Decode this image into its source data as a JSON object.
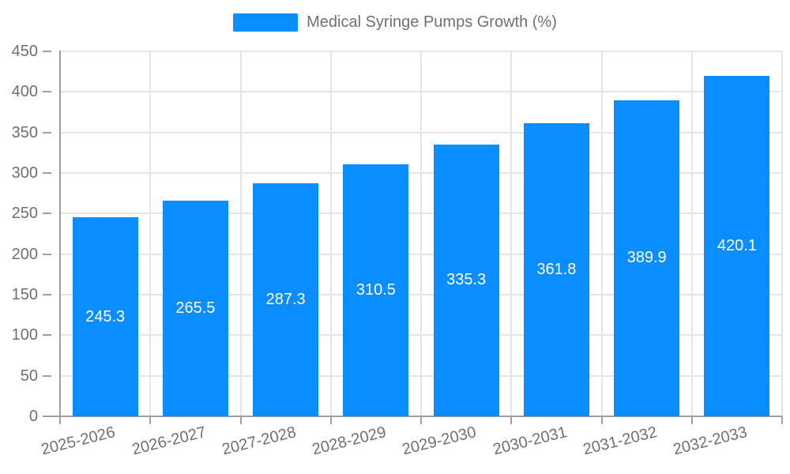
{
  "chart_data": {
    "type": "bar",
    "title": "Medical Syringe Pumps Growth (%)",
    "categories": [
      "2025-2026",
      "2026-2027",
      "2027-2028",
      "2028-2029",
      "2029-2030",
      "2030-2031",
      "2031-2032",
      "2032-2033"
    ],
    "series": [
      {
        "name": "Medical Syringe Pumps Growth (%)",
        "values": [
          245.3,
          265.5,
          287.3,
          310.5,
          335.3,
          361.8,
          389.9,
          420.1
        ]
      }
    ],
    "xlabel": "",
    "ylabel": "",
    "ylim": [
      0,
      450
    ],
    "ytick_step": 50,
    "yticks": [
      0,
      50,
      100,
      150,
      200,
      250,
      300,
      350,
      400,
      450
    ],
    "grid": true,
    "legend_position": "top-center",
    "value_label_position": "inside-center",
    "x_tick_label_rotation_deg": -14
  },
  "colors": {
    "bar": "#0A8DFF",
    "value_labels": "#FFFFFF",
    "axis_labels": "#6E7079",
    "legend_text": "#6E7079",
    "gridline": "#E5E5E5",
    "axis_line": "#9E9E9E",
    "background": "#FFFFFF"
  }
}
